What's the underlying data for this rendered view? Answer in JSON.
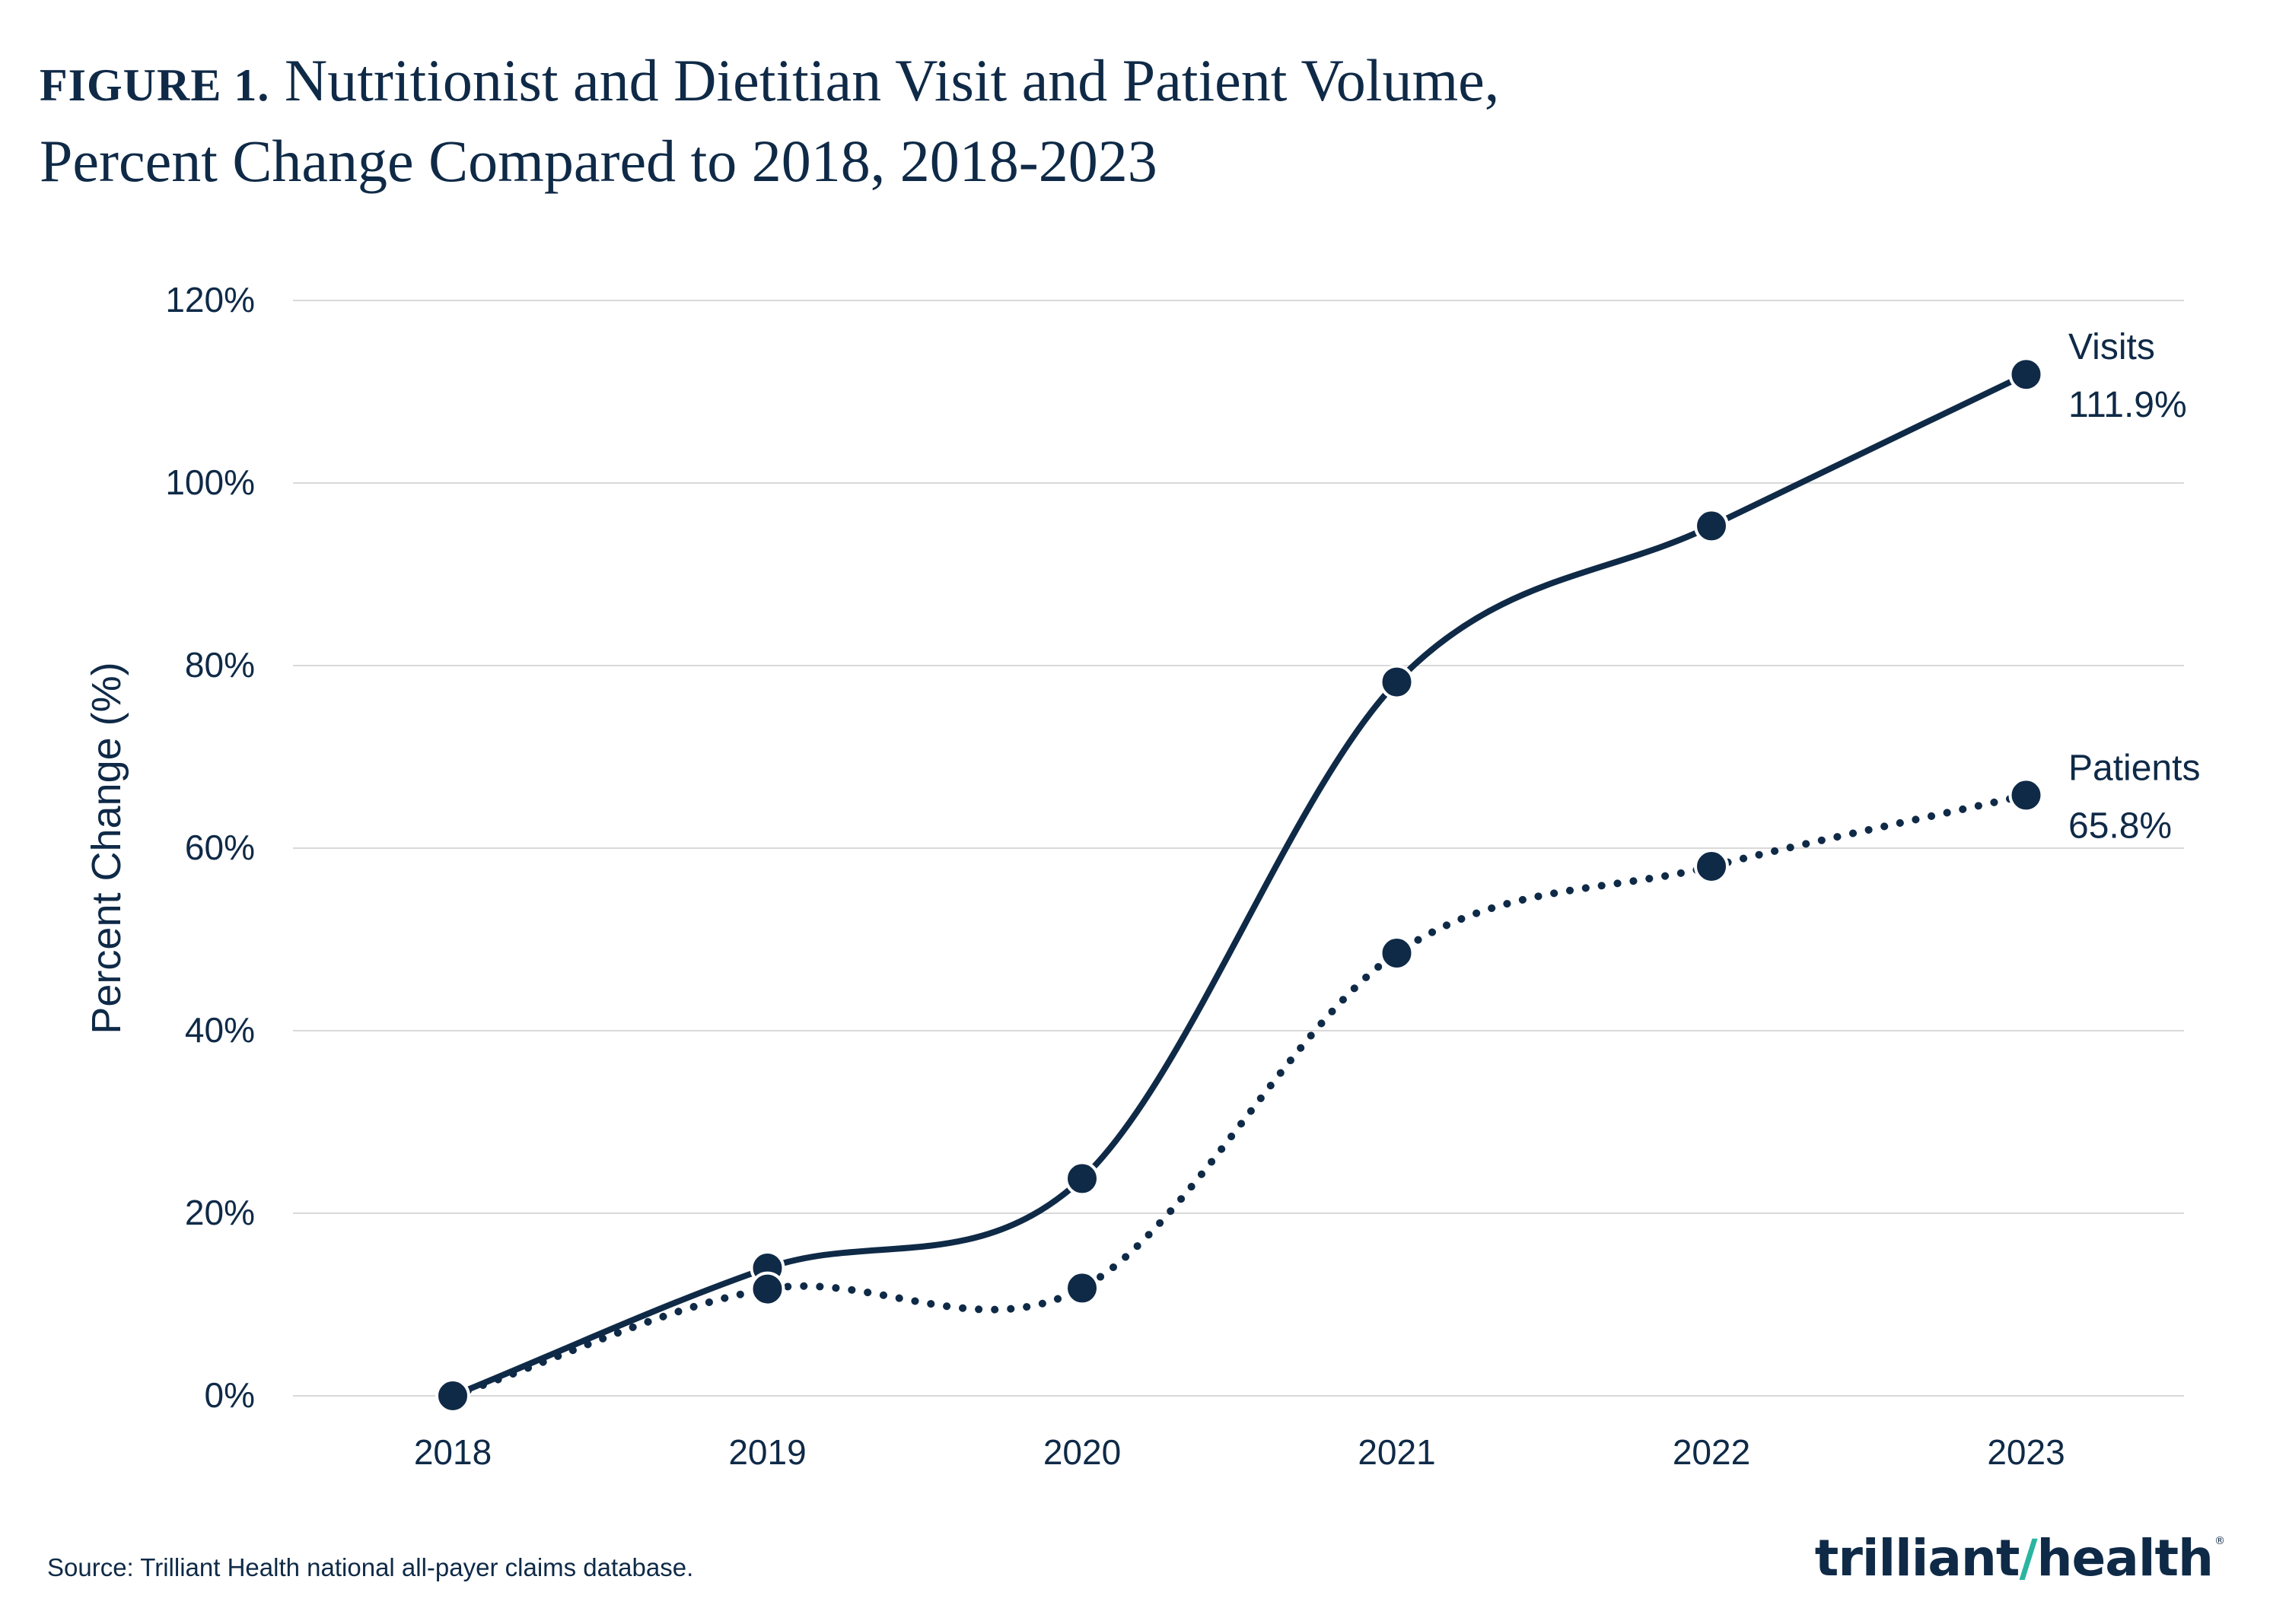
{
  "figure": {
    "label": "FIGURE 1.",
    "title_line1": "Nutritionist and Dietitian Visit and Patient Volume,",
    "title_line2": "Percent Change Compared to 2018, 2018-2023"
  },
  "chart_data": {
    "type": "line",
    "title": "Nutritionist and Dietitian Visit and Patient Volume, Percent Change Compared to 2018, 2018-2023",
    "xlabel": "",
    "ylabel": "Percent Change (%)",
    "categories": [
      "2018",
      "2019",
      "2020",
      "2021",
      "2022",
      "2023"
    ],
    "ylim": [
      0,
      120
    ],
    "yticks": [
      0,
      20,
      40,
      60,
      80,
      100,
      120
    ],
    "ytick_labels": [
      "0%",
      "20%",
      "40%",
      "60%",
      "80%",
      "100%",
      "120%"
    ],
    "grid": true,
    "series": [
      {
        "name": "Visits",
        "style": "solid",
        "values": [
          0,
          14.0,
          23.8,
          78.2,
          95.3,
          111.9
        ],
        "end_label_name": "Visits",
        "end_label_value": "111.9%"
      },
      {
        "name": "Patients",
        "style": "dotted",
        "values": [
          0,
          11.7,
          11.8,
          48.5,
          58.0,
          65.8
        ],
        "end_label_name": "Patients",
        "end_label_value": "65.8%"
      }
    ],
    "colors": {
      "line": "#0f2a47",
      "grid": "#d9d9d9",
      "text": "#0f2a47"
    }
  },
  "footer": {
    "source": "Source: Trilliant Health national all-payer claims database.",
    "logo_part1": "trilliant",
    "logo_part2": "health",
    "logo_mark": "®"
  }
}
